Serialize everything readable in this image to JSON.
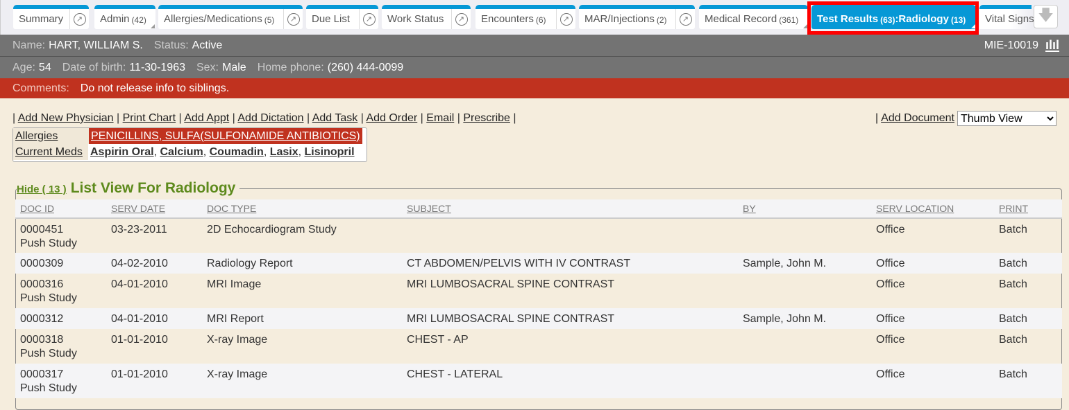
{
  "tabs": [
    {
      "label": "Summary",
      "count": "",
      "ext": true
    },
    {
      "label": "Admin",
      "count": "(42)",
      "ext": false
    },
    {
      "label": "Allergies/Medications",
      "count": "(5)",
      "ext": true
    },
    {
      "label": "Due List",
      "count": "",
      "ext": true
    },
    {
      "label": "Work Status",
      "count": "",
      "ext": true
    },
    {
      "label": "Encounters",
      "count": "(6)",
      "ext": true
    },
    {
      "label": "MAR/Injections",
      "count": "(2)",
      "ext": true
    },
    {
      "label": "Medical Record",
      "count": "(361)",
      "ext": false
    },
    {
      "label": "Test Results",
      "count": "(63)",
      "label2": ":Radiology",
      "count2": "(13)",
      "active": true
    },
    {
      "label": "Vital Signs"
    }
  ],
  "patient": {
    "name_label": "Name:",
    "name": "HART, WILLIAM S.",
    "status_label": "Status:",
    "status": "Active",
    "id": "MIE-10019",
    "age_label": "Age:",
    "age": "54",
    "dob_label": "Date of birth:",
    "dob": "11-30-1963",
    "sex_label": "Sex:",
    "sex": "Male",
    "phone_label": "Home phone:",
    "phone": "(260) 444-0099",
    "comments_label": "Comments:",
    "comments": "Do not release info to siblings."
  },
  "actions": [
    "Add New Physician",
    "Print Chart",
    "Add Appt",
    "Add Dictation",
    "Add Task",
    "Add Order",
    "Email",
    "Prescribe"
  ],
  "add_document": "Add Document",
  "view_select": "Thumb View",
  "allergies_label": "Allergies",
  "allergies": "PENICILLINS, SULFA(SULFONAMIDE ANTIBIOTICS)",
  "meds_label": "Current Meds",
  "meds": [
    "Aspirin Oral",
    "Calcium",
    "Coumadin",
    "Lasix",
    "Lisinopril"
  ],
  "list": {
    "hide": "Hide ( 13 )",
    "title": "List View For Radiology",
    "columns": [
      "DOC ID",
      "SERV DATE",
      "DOC TYPE",
      "SUBJECT",
      "BY",
      "SERV LOCATION",
      "PRINT"
    ],
    "rows": [
      [
        "0000451",
        "Push Study",
        "03-23-2011",
        "2D Echocardiogram Study",
        "",
        "",
        "Office",
        "Batch"
      ],
      [
        "0000309",
        "",
        "04-02-2010",
        "Radiology Report",
        "CT ABDOMEN/PELVIS WITH IV CONTRAST",
        "Sample, John M.",
        "Office",
        "Batch"
      ],
      [
        "0000316",
        "Push Study",
        "04-01-2010",
        "MRI Image",
        "MRI LUMBOSACRAL SPINE CONTRAST",
        "",
        "Office",
        "Batch"
      ],
      [
        "0000312",
        "",
        "04-01-2010",
        "MRI Report",
        "MRI LUMBOSACRAL SPINE CONTRAST",
        "Sample, John M.",
        "Office",
        "Batch"
      ],
      [
        "0000318",
        "Push Study",
        "01-01-2010",
        "X-ray Image",
        "CHEST - AP",
        "",
        "Office",
        "Batch"
      ],
      [
        "0000317",
        "Push Study",
        "01-01-2010",
        "X-ray Image",
        "CHEST - LATERAL",
        "",
        "Office",
        "Batch"
      ]
    ]
  },
  "colors": {
    "accent": "#0698d6",
    "alert": "#c0321f",
    "header": "#737373",
    "title": "#5d8a1c"
  }
}
